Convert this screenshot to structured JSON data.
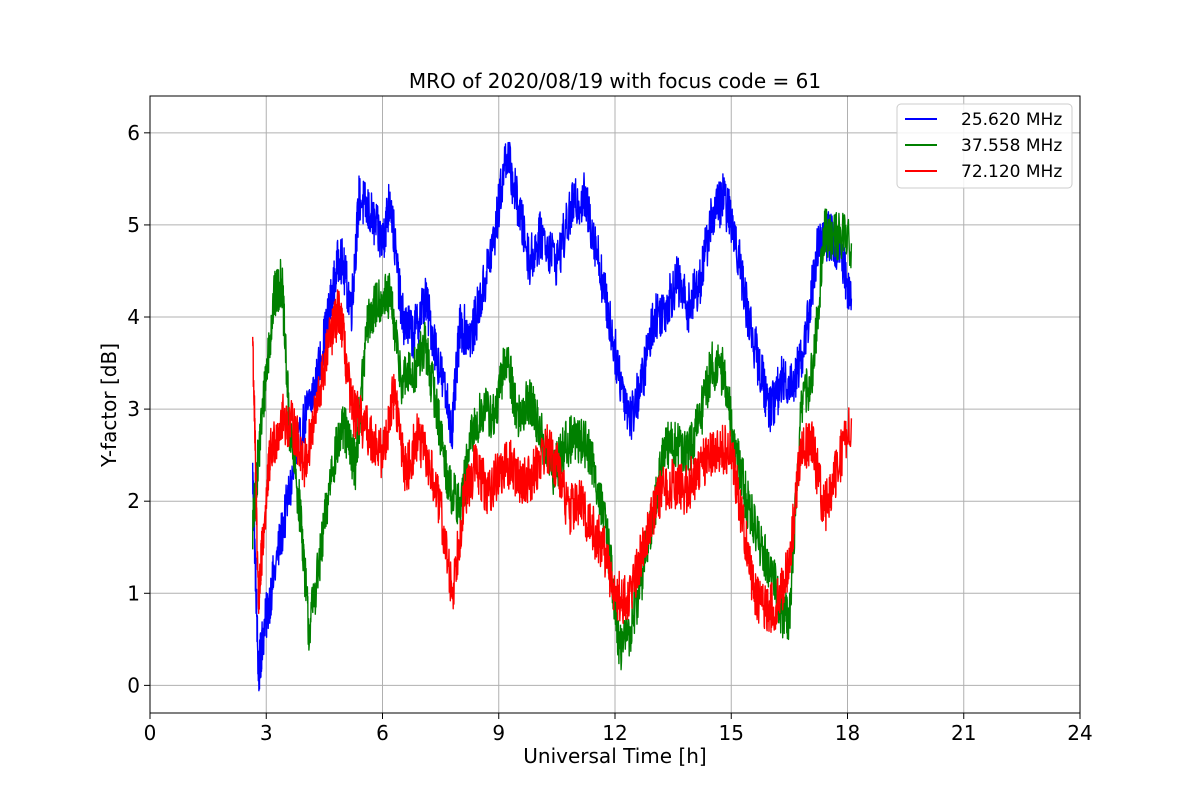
{
  "chart_data": {
    "type": "line",
    "title": "MRO of 2020/08/19 with focus code = 61",
    "xlabel": "Universal Time [h]",
    "ylabel": "Y-factor [dB]",
    "xlim": [
      0,
      24
    ],
    "ylim": [
      -0.3,
      6.4
    ],
    "xticks": [
      0,
      3,
      6,
      9,
      12,
      15,
      18,
      21,
      24
    ],
    "yticks": [
      0,
      1,
      2,
      3,
      4,
      5,
      6
    ],
    "grid": true,
    "legend_position": "top-right",
    "series": [
      {
        "name": "25.620 MHz",
        "color": "#0000ff",
        "x": [
          2.65,
          2.8,
          2.9,
          3.2,
          3.6,
          4.0,
          4.3,
          4.6,
          4.9,
          5.2,
          5.4,
          5.7,
          6.0,
          6.2,
          6.5,
          6.8,
          7.1,
          7.4,
          7.8,
          8.0,
          8.3,
          8.6,
          8.9,
          9.2,
          9.5,
          9.8,
          10.1,
          10.5,
          10.9,
          11.2,
          11.5,
          11.8,
          12.1,
          12.4,
          12.7,
          13.0,
          13.3,
          13.6,
          13.9,
          14.2,
          14.5,
          14.8,
          15.1,
          15.4,
          15.7,
          16.0,
          16.3,
          16.6,
          16.9,
          17.2,
          17.5,
          17.8,
          18.1
        ],
        "y": [
          2.3,
          0.1,
          0.5,
          1.2,
          2.1,
          2.9,
          3.3,
          4.0,
          4.7,
          4.1,
          5.3,
          5.1,
          4.8,
          5.3,
          4.0,
          3.8,
          4.2,
          3.6,
          2.8,
          3.9,
          3.8,
          4.3,
          4.9,
          5.8,
          5.2,
          4.6,
          4.9,
          4.6,
          5.2,
          5.3,
          4.8,
          4.1,
          3.4,
          2.9,
          3.3,
          4.0,
          4.1,
          4.4,
          4.1,
          4.4,
          5.1,
          5.3,
          4.9,
          4.1,
          3.5,
          3.0,
          3.3,
          3.3,
          3.7,
          4.7,
          4.9,
          4.7,
          4.2
        ]
      },
      {
        "name": "37.558 MHz",
        "color": "#008000",
        "x": [
          2.65,
          2.8,
          3.0,
          3.2,
          3.4,
          3.6,
          3.9,
          4.1,
          4.4,
          4.7,
          5.0,
          5.3,
          5.6,
          5.9,
          6.2,
          6.5,
          6.8,
          7.1,
          7.4,
          7.7,
          8.0,
          8.3,
          8.6,
          8.9,
          9.2,
          9.5,
          9.8,
          10.1,
          10.4,
          10.7,
          11.0,
          11.3,
          11.6,
          11.9,
          12.1,
          12.4,
          12.7,
          13.0,
          13.3,
          13.6,
          13.9,
          14.2,
          14.5,
          14.8,
          15.1,
          15.4,
          15.7,
          16.0,
          16.3,
          16.5,
          16.8,
          17.1,
          17.4,
          17.7,
          18.1
        ],
        "y": [
          1.7,
          2.5,
          3.4,
          4.2,
          4.4,
          2.8,
          1.8,
          0.6,
          1.4,
          2.4,
          2.8,
          2.4,
          3.9,
          4.2,
          4.2,
          3.3,
          3.4,
          3.7,
          3.0,
          2.2,
          1.9,
          2.7,
          3.0,
          2.9,
          3.6,
          2.9,
          3.1,
          2.7,
          2.3,
          2.6,
          2.7,
          2.6,
          2.1,
          1.3,
          0.4,
          0.6,
          1.2,
          1.9,
          2.6,
          2.6,
          2.5,
          2.9,
          3.5,
          3.4,
          2.6,
          2.0,
          1.6,
          1.3,
          0.8,
          0.7,
          3.0,
          3.4,
          4.9,
          4.9,
          4.8
        ]
      },
      {
        "name": "72.120 MHz",
        "color": "#ff0000",
        "x": [
          2.65,
          2.8,
          2.9,
          3.1,
          3.4,
          3.7,
          4.0,
          4.3,
          4.6,
          4.9,
          5.2,
          5.4,
          5.7,
          6.0,
          6.3,
          6.6,
          6.9,
          7.2,
          7.5,
          7.8,
          8.1,
          8.4,
          8.7,
          9.0,
          9.3,
          9.6,
          9.9,
          10.2,
          10.5,
          10.8,
          11.1,
          11.4,
          11.7,
          12.0,
          12.3,
          12.6,
          12.9,
          13.2,
          13.5,
          13.8,
          14.1,
          14.4,
          14.7,
          15.0,
          15.3,
          15.6,
          15.9,
          16.2,
          16.5,
          16.8,
          17.1,
          17.4,
          17.7,
          18.1
        ],
        "y": [
          3.8,
          0.9,
          1.5,
          2.5,
          2.9,
          2.8,
          2.4,
          3.0,
          3.7,
          4.1,
          3.0,
          2.9,
          2.7,
          2.5,
          3.2,
          2.3,
          2.7,
          2.4,
          1.9,
          1.0,
          2.0,
          2.4,
          2.1,
          2.3,
          2.4,
          2.2,
          2.3,
          2.6,
          2.4,
          1.9,
          2.0,
          1.7,
          1.5,
          1.0,
          0.9,
          1.3,
          1.8,
          2.1,
          2.2,
          2.1,
          2.3,
          2.5,
          2.6,
          2.5,
          1.8,
          1.0,
          0.8,
          0.9,
          1.3,
          2.6,
          2.6,
          1.9,
          2.3,
          2.9
        ]
      }
    ]
  }
}
